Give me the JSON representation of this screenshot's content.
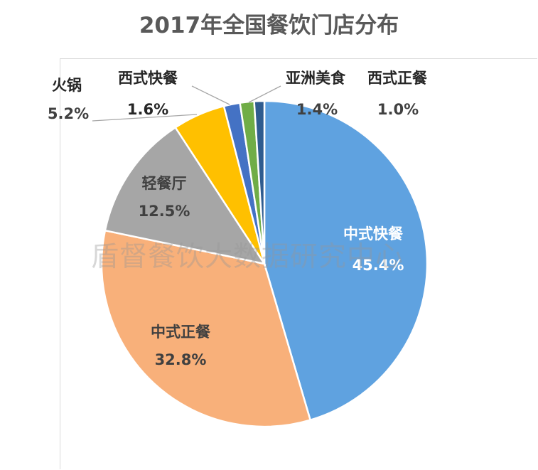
{
  "chart_data": {
    "type": "pie",
    "title": "2017年全国餐饮门店分布",
    "slices": [
      {
        "name": "中式快餐",
        "value": 45.4,
        "label": "45.4%",
        "color": "#5fa2e0"
      },
      {
        "name": "中式正餐",
        "value": 32.8,
        "label": "32.8%",
        "color": "#f8b07a"
      },
      {
        "name": "轻餐厅",
        "value": 12.5,
        "label": "12.5%",
        "color": "#a6a6a6"
      },
      {
        "name": "火锅",
        "value": 5.2,
        "label": "5.2%",
        "color": "#ffc000"
      },
      {
        "name": "西式快餐",
        "value": 1.6,
        "label": "1.6%",
        "color": "#4472c4"
      },
      {
        "name": "亚洲美食",
        "value": 1.4,
        "label": "1.4%",
        "color": "#70ad47"
      },
      {
        "name": "西式正餐",
        "value": 1.0,
        "label": "1.0%",
        "color": "#2f5c8f"
      }
    ]
  },
  "watermark": "盾督餐饮大数据研究中心"
}
